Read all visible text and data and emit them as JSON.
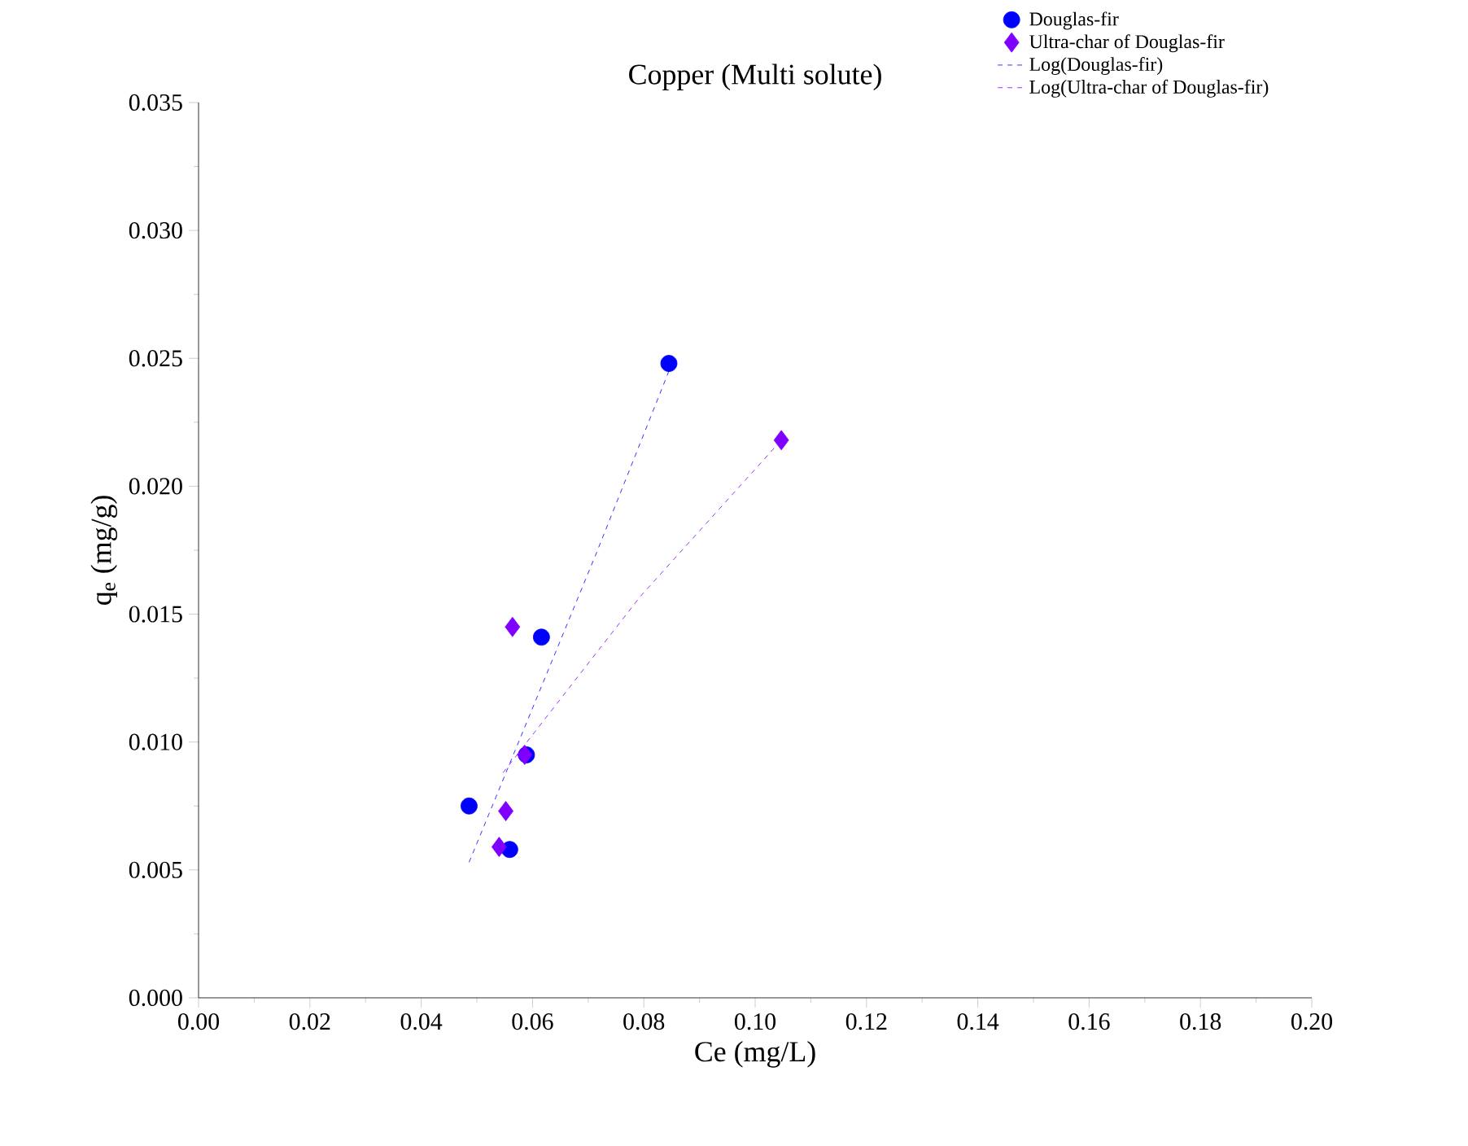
{
  "chart_data": {
    "type": "scatter",
    "title": "Copper (Multi solute)",
    "xlabel": "Ce (mg/L)",
    "ylabel": "q$_{e}$ (mg/g)",
    "xlim": [
      0,
      0.2
    ],
    "ylim": [
      0,
      0.035
    ],
    "xticks": [
      {
        "value": 0,
        "label": "0.00"
      },
      {
        "value": 0.02,
        "label": "0.02"
      },
      {
        "value": 0.04,
        "label": "0.04"
      },
      {
        "value": 0.06,
        "label": "0.06"
      },
      {
        "value": 0.08,
        "label": "0.08"
      },
      {
        "value": 0.1,
        "label": "0.10"
      },
      {
        "value": 0.12,
        "label": "0.12"
      },
      {
        "value": 0.14,
        "label": "0.14"
      },
      {
        "value": 0.16,
        "label": "0.16"
      },
      {
        "value": 0.18,
        "label": "0.18"
      },
      {
        "value": 0.2,
        "label": "0.20"
      }
    ],
    "yticks": [
      {
        "value": 0,
        "label": "0.000"
      },
      {
        "value": 0.005,
        "label": "0.005"
      },
      {
        "value": 0.01,
        "label": "0.010"
      },
      {
        "value": 0.015,
        "label": "0.015"
      },
      {
        "value": 0.02,
        "label": "0.020"
      },
      {
        "value": 0.025,
        "label": "0.025"
      },
      {
        "value": 0.03,
        "label": "0.030"
      },
      {
        "value": 0.035,
        "label": "0.035"
      }
    ],
    "legend": "top right",
    "grid": false,
    "series": [
      {
        "name": "Douglas-fir",
        "marker": "circle",
        "color": "#0000ff",
        "x": [
          0.0845,
          0.0616,
          0.0589,
          0.0486,
          0.0559
        ],
        "values": [
          0.0248,
          0.0141,
          0.0095,
          0.0075,
          0.0058
        ]
      },
      {
        "name": "Ultra-char of Douglas-fir",
        "marker": "diamond",
        "color": "#8000ff",
        "x": [
          0.1047,
          0.0564,
          0.0586,
          0.0552,
          0.054
        ],
        "values": [
          0.0218,
          0.0145,
          0.0095,
          0.0073,
          0.0059
        ]
      },
      {
        "name": "Log(Douglas-fir)",
        "type": "line",
        "line_style": "dashed",
        "color": "#0000ff",
        "x": [
          0.0486,
          0.0715,
          0.0845
        ],
        "values": [
          0.0053,
          0.0174,
          0.0245
        ]
      },
      {
        "name": "Log(Ultra-char of Douglas-fir)",
        "type": "line",
        "line_style": "dashed",
        "color": "#8000ff",
        "x": [
          0.0547,
          0.0794,
          0.1047
        ],
        "values": [
          0.0088,
          0.0157,
          0.0218
        ]
      }
    ]
  }
}
